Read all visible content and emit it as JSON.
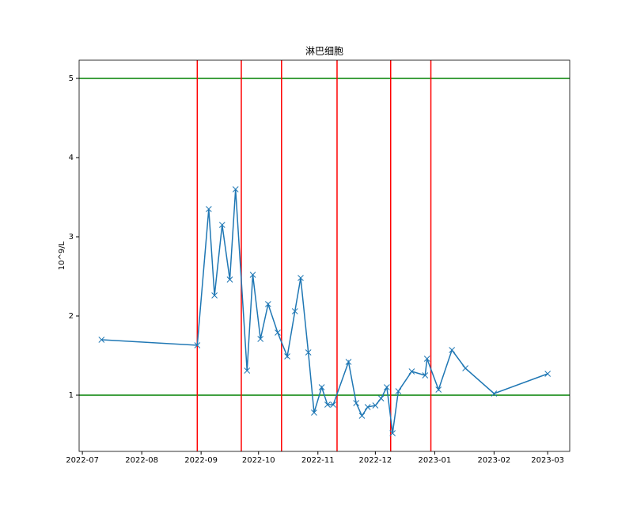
{
  "chart_data": {
    "type": "line",
    "title": "淋巴细胞",
    "y_label": "10^9/L",
    "x": [
      10,
      60,
      66,
      69,
      73,
      77,
      80,
      86,
      89,
      93,
      97,
      102,
      107,
      111,
      114,
      118,
      121,
      125,
      128,
      131,
      139,
      143,
      146,
      149,
      153,
      156,
      159,
      162,
      165,
      172,
      179,
      180,
      186,
      193,
      200,
      215,
      243
    ],
    "series": [
      {
        "color": "#1f77b4",
        "marker": "x",
        "values": [
          1.7,
          1.63,
          3.35,
          2.26,
          3.15,
          2.46,
          3.6,
          1.31,
          2.52,
          1.71,
          2.15,
          1.79,
          1.49,
          2.06,
          2.48,
          1.54,
          0.78,
          1.1,
          0.88,
          0.88,
          1.42,
          0.9,
          0.74,
          0.85,
          0.87,
          0.96,
          1.1,
          0.52,
          1.05,
          1.3,
          1.25,
          1.46,
          1.07,
          1.57,
          1.34,
          1.02,
          1.27
        ]
      }
    ],
    "xlim": [
      -1.7,
      254.5
    ],
    "ylim": [
      0.29,
      5.23
    ],
    "xticks": [
      {
        "value": 0,
        "label": "2022-07"
      },
      {
        "value": 31,
        "label": "2022-08"
      },
      {
        "value": 62,
        "label": "2022-09"
      },
      {
        "value": 92,
        "label": "2022-10"
      },
      {
        "value": 123,
        "label": "2022-11"
      },
      {
        "value": 153,
        "label": "2022-12"
      },
      {
        "value": 184,
        "label": "2023-01"
      },
      {
        "value": 215,
        "label": "2023-02"
      },
      {
        "value": 243,
        "label": "2023-03"
      }
    ],
    "yticks": [
      1,
      2,
      3,
      4,
      5
    ],
    "hlines": {
      "color": "green",
      "values": [
        1,
        5
      ]
    },
    "vlines": {
      "color": "red",
      "values": [
        60,
        83,
        104,
        133,
        161,
        182
      ]
    }
  }
}
